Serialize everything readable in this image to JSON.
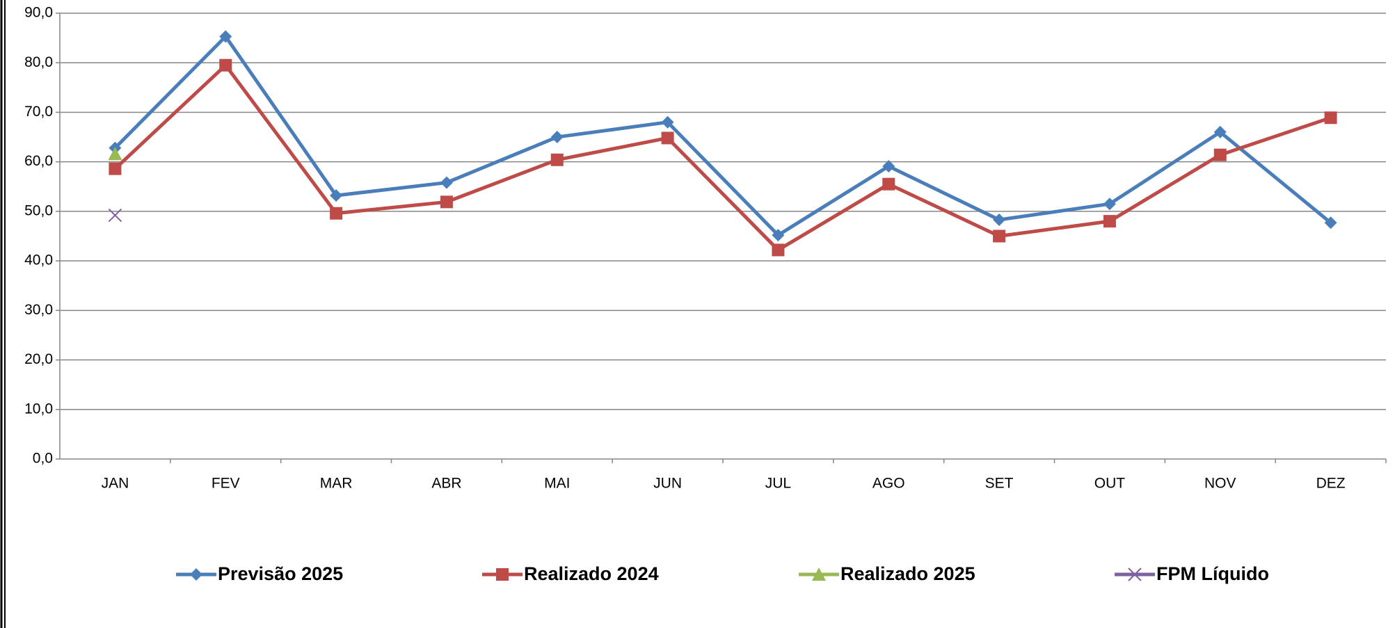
{
  "chart_data": {
    "type": "line",
    "categories": [
      "JAN",
      "FEV",
      "MAR",
      "ABR",
      "MAI",
      "JUN",
      "JUL",
      "AGO",
      "SET",
      "OUT",
      "NOV",
      "DEZ"
    ],
    "series": [
      {
        "name": "Previsão 2025",
        "color": "#4a7ebb",
        "marker": "diamond",
        "values": [
          62.8,
          85.3,
          53.2,
          55.8,
          65.0,
          68.0,
          45.2,
          59.1,
          48.3,
          51.5,
          66.0,
          47.7
        ]
      },
      {
        "name": "Realizado 2024",
        "color": "#be4b48",
        "marker": "square",
        "values": [
          58.6,
          79.5,
          49.6,
          51.9,
          60.4,
          64.8,
          42.2,
          55.5,
          45.0,
          48.0,
          61.4,
          68.9
        ]
      },
      {
        "name": "Realizado 2025",
        "color": "#98b954",
        "marker": "triangle",
        "values": [
          61.6,
          null,
          null,
          null,
          null,
          null,
          null,
          null,
          null,
          null,
          null,
          null
        ]
      },
      {
        "name": "FPM Líquido",
        "color": "#7d60a0",
        "marker": "x",
        "values": [
          49.2,
          null,
          null,
          null,
          null,
          null,
          null,
          null,
          null,
          null,
          null,
          null
        ]
      }
    ],
    "ylim": [
      0,
      90
    ],
    "yticks": [
      {
        "value": 0,
        "label": "0,0"
      },
      {
        "value": 10,
        "label": "10,0"
      },
      {
        "value": 20,
        "label": "20,0"
      },
      {
        "value": 30,
        "label": "30,0"
      },
      {
        "value": 40,
        "label": "40,0"
      },
      {
        "value": 50,
        "label": "50,0"
      },
      {
        "value": 60,
        "label": "60,0"
      },
      {
        "value": 70,
        "label": "70,0"
      },
      {
        "value": 80,
        "label": "80,0"
      },
      {
        "value": 90,
        "label": "90,0"
      }
    ],
    "grid": true,
    "legend": "bottom"
  }
}
